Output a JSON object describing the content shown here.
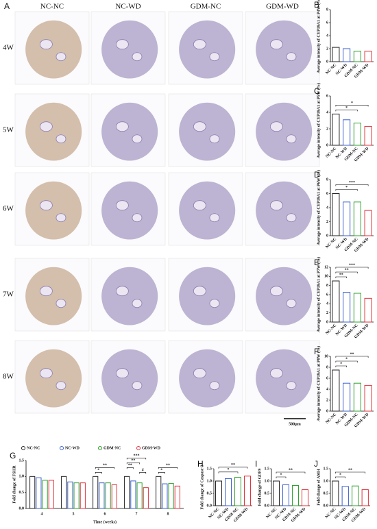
{
  "panel_a": {
    "label": "A",
    "columns": [
      "NC-NC",
      "NC-WD",
      "GDM-NC",
      "GDM-WD"
    ],
    "rows": [
      "4W",
      "5W",
      "6W",
      "7W",
      "8W"
    ],
    "scale_bar": "500μm"
  },
  "chart_data": [
    {
      "panel_label": "B",
      "type": "bar",
      "ylabel": "Average intensity of CYP19A1 at P4W (%)",
      "categories": [
        "NC-NC",
        "NC-WD",
        "GDM-NC",
        "GDM-WD"
      ],
      "values": [
        2.2,
        2.0,
        1.6,
        1.6
      ],
      "colors": [
        "#222222",
        "#3a5fcd",
        "#2ca02c",
        "#e0303a"
      ],
      "ylim": [
        0,
        8
      ],
      "yticks": [
        0,
        2,
        4,
        6,
        8
      ],
      "annotations": []
    },
    {
      "panel_label": "C",
      "type": "bar",
      "ylabel": "Average intensity of CYP19A1 at P5W (%)",
      "categories": [
        "NC-NC",
        "NC-WD",
        "GDM-NC",
        "GDM-WD"
      ],
      "values": [
        3.8,
        3.1,
        2.7,
        2.3
      ],
      "colors": [
        "#222222",
        "#3a5fcd",
        "#2ca02c",
        "#e0303a"
      ],
      "ylim": [
        0,
        6
      ],
      "yticks": [
        0,
        2,
        4,
        6
      ],
      "annotations": [
        {
          "text": "*",
          "between": [
            "NC-NC",
            "GDM-NC"
          ]
        },
        {
          "text": "*",
          "between": [
            "NC-NC",
            "GDM-WD"
          ]
        }
      ]
    },
    {
      "panel_label": "D",
      "type": "bar",
      "ylabel": "Average intensity of CYP19A1 at P6W (%)",
      "categories": [
        "NC-NC",
        "NC-WD",
        "GDM-NC",
        "GDM-WD"
      ],
      "values": [
        6.0,
        4.8,
        4.8,
        3.6
      ],
      "colors": [
        "#222222",
        "#3a5fcd",
        "#2ca02c",
        "#e0303a"
      ],
      "ylim": [
        0,
        8
      ],
      "yticks": [
        0,
        2,
        4,
        6,
        8
      ],
      "annotations": [
        {
          "text": "*",
          "between": [
            "NC-NC",
            "GDM-NC"
          ]
        },
        {
          "text": "***",
          "between": [
            "NC-NC",
            "GDM-WD"
          ]
        }
      ]
    },
    {
      "panel_label": "E",
      "type": "bar",
      "ylabel": "Average intensity of CYP19A1 at P7W (%)",
      "categories": [
        "NC-NC",
        "NC-WD",
        "GDM-NC",
        "GDM-WD"
      ],
      "values": [
        9.0,
        6.5,
        6.3,
        5.2
      ],
      "colors": [
        "#222222",
        "#3a5fcd",
        "#2ca02c",
        "#e0303a"
      ],
      "ylim": [
        0,
        12
      ],
      "yticks": [
        0,
        2,
        4,
        6,
        8,
        10,
        12
      ],
      "annotations": [
        {
          "text": "**",
          "between": [
            "NC-NC",
            "NC-WD"
          ]
        },
        {
          "text": "**",
          "between": [
            "NC-NC",
            "GDM-NC"
          ]
        },
        {
          "text": "***",
          "between": [
            "NC-NC",
            "GDM-WD"
          ]
        }
      ]
    },
    {
      "panel_label": "F",
      "type": "bar",
      "ylabel": "Average intensity of CYP19A1 at P8W (%)",
      "categories": [
        "NC-NC",
        "NC-WD",
        "GDM-NC",
        "GDM-WD"
      ],
      "values": [
        7.5,
        5.1,
        5.1,
        4.7
      ],
      "colors": [
        "#222222",
        "#3a5fcd",
        "#2ca02c",
        "#e0303a"
      ],
      "ylim": [
        0,
        10
      ],
      "yticks": [
        0,
        2,
        4,
        6,
        8,
        10
      ],
      "annotations": [
        {
          "text": "*",
          "between": [
            "NC-NC",
            "NC-WD"
          ]
        },
        {
          "text": "*",
          "between": [
            "NC-NC",
            "GDM-NC"
          ]
        },
        {
          "text": "**",
          "between": [
            "NC-NC",
            "GDM-WD"
          ]
        }
      ]
    },
    {
      "panel_label": "G",
      "type": "bar",
      "ylabel": "Fold change of FSHR",
      "xlabel": "Time (weeks)",
      "categories": [
        "4",
        "5",
        "6",
        "7",
        "8"
      ],
      "series": [
        {
          "name": "NC-NC",
          "color": "#222222",
          "values": [
            1.0,
            1.0,
            1.0,
            1.0,
            1.0
          ]
        },
        {
          "name": "NC-WD",
          "color": "#3a5fcd",
          "values": [
            0.96,
            0.83,
            0.8,
            0.86,
            0.77
          ]
        },
        {
          "name": "GDM-NC",
          "color": "#2ca02c",
          "values": [
            0.88,
            0.8,
            0.8,
            0.8,
            0.78
          ]
        },
        {
          "name": "GDM-WD",
          "color": "#e0303a",
          "values": [
            0.88,
            0.8,
            0.74,
            0.65,
            0.7
          ]
        }
      ],
      "ylim": [
        0,
        1.5
      ],
      "yticks": [
        {
          "value": 0,
          "label": "0.0"
        },
        {
          "value": 0.5,
          "label": "0.5"
        },
        {
          "value": 1,
          "label": "1.0"
        },
        {
          "value": 1.5,
          "label": "1.5"
        }
      ],
      "annotations": [
        {
          "category": "6",
          "text": "*",
          "between": [
            "NC-NC",
            "NC-WD"
          ]
        },
        {
          "category": "6",
          "text": "**",
          "between": [
            "NC-NC",
            "GDM-WD"
          ]
        },
        {
          "category": "7",
          "text": "#",
          "between": [
            "GDM-NC",
            "GDM-WD"
          ]
        },
        {
          "category": "7",
          "text": "**",
          "between": [
            "NC-NC",
            "NC-WD"
          ]
        },
        {
          "category": "7",
          "text": "**",
          "between": [
            "NC-NC",
            "GDM-NC"
          ]
        },
        {
          "category": "7",
          "text": "***",
          "between": [
            "NC-NC",
            "GDM-WD"
          ]
        },
        {
          "category": "8",
          "text": "*",
          "between": [
            "NC-NC",
            "NC-WD"
          ]
        },
        {
          "category": "8",
          "text": "**",
          "between": [
            "NC-NC",
            "GDM-WD"
          ]
        }
      ]
    },
    {
      "panel_label": "H",
      "type": "bar",
      "ylabel": "Fold change of Caspase-3",
      "categories": [
        "NC-NC",
        "NC-WD",
        "GDM-NC",
        "GDM-WD"
      ],
      "values": [
        1.0,
        1.1,
        1.15,
        1.2
      ],
      "colors": [
        "#222222",
        "#3a5fcd",
        "#2ca02c",
        "#e0303a"
      ],
      "ylim": [
        0,
        1.5
      ],
      "yticks": [
        {
          "value": 0,
          "label": "0.0"
        },
        {
          "value": 0.5,
          "label": "0.5"
        },
        {
          "value": 1,
          "label": "1.0"
        },
        {
          "value": 1.5,
          "label": "1.5"
        }
      ],
      "annotations": [
        {
          "text": "*",
          "between": [
            "NC-NC",
            "GDM-NC"
          ]
        },
        {
          "text": "**",
          "between": [
            "NC-NC",
            "GDM-WD"
          ]
        }
      ]
    },
    {
      "panel_label": "I",
      "type": "bar",
      "ylabel": "Fold change of GDF9",
      "categories": [
        "NC-NC",
        "NC-WD",
        "GDM-NC",
        "GDM-WD"
      ],
      "values": [
        1.0,
        0.85,
        0.82,
        0.65
      ],
      "colors": [
        "#222222",
        "#3a5fcd",
        "#2ca02c",
        "#e0303a"
      ],
      "ylim": [
        0,
        1.5
      ],
      "yticks": [
        {
          "value": 0,
          "label": "0.0"
        },
        {
          "value": 0.5,
          "label": "0.5"
        },
        {
          "value": 1,
          "label": "1.0"
        },
        {
          "value": 1.5,
          "label": "1.5"
        }
      ],
      "annotations": [
        {
          "text": "*",
          "between": [
            "NC-NC",
            "NC-WD"
          ]
        },
        {
          "text": "**",
          "between": [
            "NC-NC",
            "GDM-WD"
          ]
        }
      ]
    },
    {
      "panel_label": "J",
      "type": "bar",
      "ylabel": "Fold change of AMH",
      "categories": [
        "NC-NC",
        "NC-WD",
        "GDM-NC",
        "GDM-WD"
      ],
      "values": [
        1.0,
        0.78,
        0.8,
        0.65
      ],
      "colors": [
        "#222222",
        "#3a5fcd",
        "#2ca02c",
        "#e0303a"
      ],
      "ylim": [
        0,
        1.5
      ],
      "yticks": [
        {
          "value": 0,
          "label": "0.0"
        },
        {
          "value": 0.5,
          "label": "0.5"
        },
        {
          "value": 1,
          "label": "1.0"
        },
        {
          "value": 1.5,
          "label": "1.5"
        }
      ],
      "annotations": [
        {
          "text": "*",
          "between": [
            "NC-NC",
            "NC-WD"
          ]
        },
        {
          "text": "**",
          "between": [
            "NC-NC",
            "GDM-WD"
          ]
        }
      ]
    }
  ]
}
